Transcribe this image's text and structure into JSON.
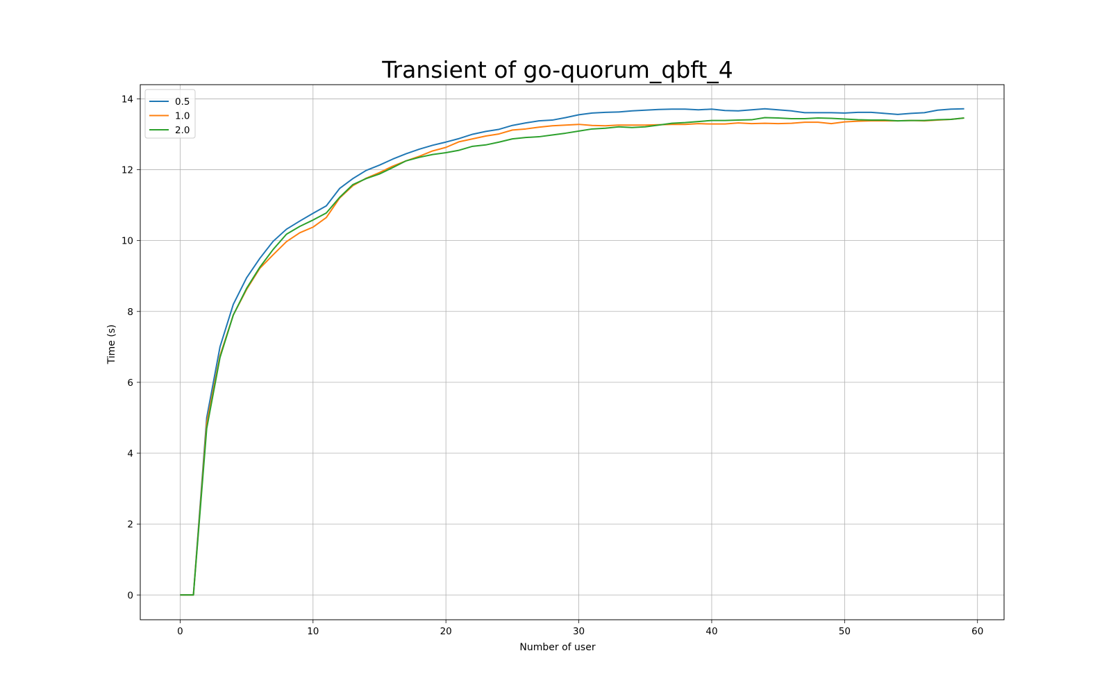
{
  "chart_data": {
    "type": "line",
    "title": "Transient of go-quorum_qbft_4",
    "xlabel": "Number of user",
    "ylabel": "Time (s)",
    "xlim": [
      -3,
      62
    ],
    "ylim": [
      -0.7,
      14.4
    ],
    "xticks": [
      0,
      10,
      20,
      30,
      40,
      50,
      60
    ],
    "yticks": [
      0,
      2,
      4,
      6,
      8,
      10,
      12,
      14
    ],
    "grid": true,
    "legend_position": "top-left",
    "x": [
      0,
      1,
      2,
      3,
      4,
      5,
      6,
      7,
      8,
      9,
      10,
      11,
      12,
      13,
      14,
      15,
      16,
      17,
      18,
      19,
      20,
      21,
      22,
      23,
      24,
      25,
      26,
      27,
      28,
      29,
      30,
      31,
      32,
      33,
      34,
      35,
      36,
      37,
      38,
      39,
      40,
      41,
      42,
      43,
      44,
      45,
      46,
      47,
      48,
      49,
      50,
      51,
      52,
      53,
      54,
      55,
      56,
      57,
      58,
      59
    ],
    "series": [
      {
        "name": "0.5",
        "color": "#1f77b4",
        "values": [
          0,
          0,
          5.0,
          7.0,
          8.2,
          8.95,
          9.5,
          9.98,
          10.32,
          10.55,
          10.77,
          10.98,
          11.47,
          11.75,
          11.98,
          12.13,
          12.3,
          12.45,
          12.58,
          12.69,
          12.78,
          12.88,
          13.0,
          13.08,
          13.14,
          13.25,
          13.32,
          13.38,
          13.4,
          13.47,
          13.55,
          13.6,
          13.62,
          13.63,
          13.66,
          13.68,
          13.7,
          13.71,
          13.71,
          13.69,
          13.71,
          13.67,
          13.66,
          13.69,
          13.72,
          13.69,
          13.66,
          13.61,
          13.61,
          13.61,
          13.6,
          13.62,
          13.62,
          13.59,
          13.56,
          13.59,
          13.61,
          13.68,
          13.71,
          13.72
        ]
      },
      {
        "name": "1.0",
        "color": "#ff7f0e",
        "values": [
          0,
          0,
          4.85,
          6.75,
          7.9,
          8.62,
          9.22,
          9.6,
          9.97,
          10.22,
          10.38,
          10.65,
          11.2,
          11.55,
          11.76,
          11.92,
          12.1,
          12.25,
          12.38,
          12.53,
          12.63,
          12.79,
          12.87,
          12.95,
          13.01,
          13.12,
          13.15,
          13.2,
          13.24,
          13.26,
          13.28,
          13.25,
          13.24,
          13.26,
          13.26,
          13.26,
          13.27,
          13.28,
          13.28,
          13.3,
          13.29,
          13.29,
          13.32,
          13.3,
          13.31,
          13.3,
          13.31,
          13.34,
          13.34,
          13.3,
          13.35,
          13.37,
          13.38,
          13.38,
          13.38,
          13.39,
          13.38,
          13.4,
          13.42,
          13.46
        ]
      },
      {
        "name": "2.0",
        "color": "#2ca02c",
        "values": [
          0,
          0,
          4.7,
          6.7,
          7.9,
          8.65,
          9.25,
          9.75,
          10.18,
          10.4,
          10.58,
          10.78,
          11.22,
          11.58,
          11.75,
          11.88,
          12.06,
          12.25,
          12.35,
          12.43,
          12.48,
          12.55,
          12.66,
          12.7,
          12.78,
          12.87,
          12.91,
          12.93,
          12.98,
          13.03,
          13.09,
          13.15,
          13.17,
          13.21,
          13.19,
          13.21,
          13.26,
          13.31,
          13.33,
          13.36,
          13.39,
          13.39,
          13.4,
          13.41,
          13.47,
          13.46,
          13.44,
          13.44,
          13.46,
          13.45,
          13.43,
          13.41,
          13.4,
          13.4,
          13.38,
          13.39,
          13.39,
          13.41,
          13.42,
          13.46
        ]
      }
    ]
  }
}
